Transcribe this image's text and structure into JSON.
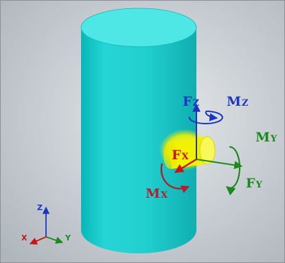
{
  "forces": {
    "fz": {
      "main": "F",
      "sub": "Z"
    },
    "fx": {
      "main": "F",
      "sub": "X"
    },
    "fy": {
      "main": "F",
      "sub": "Y"
    }
  },
  "moments": {
    "mz": {
      "main": "M",
      "sub": "Z"
    },
    "mx": {
      "main": "M",
      "sub": "X"
    },
    "my": {
      "main": "M",
      "sub": "Y"
    }
  },
  "axis_triad": {
    "x": "X",
    "y": "Y",
    "z": "Z"
  },
  "colors": {
    "background": "#c9ced3",
    "cylinder": "#1fd0d0",
    "peg": "#f2f200",
    "force_x": "#cc1111",
    "force_y": "#1a8a1a",
    "force_z": "#1a35c0",
    "moment_x": "#b02030",
    "moment_y": "#1a8a1a",
    "moment_z": "#1a35c0"
  }
}
